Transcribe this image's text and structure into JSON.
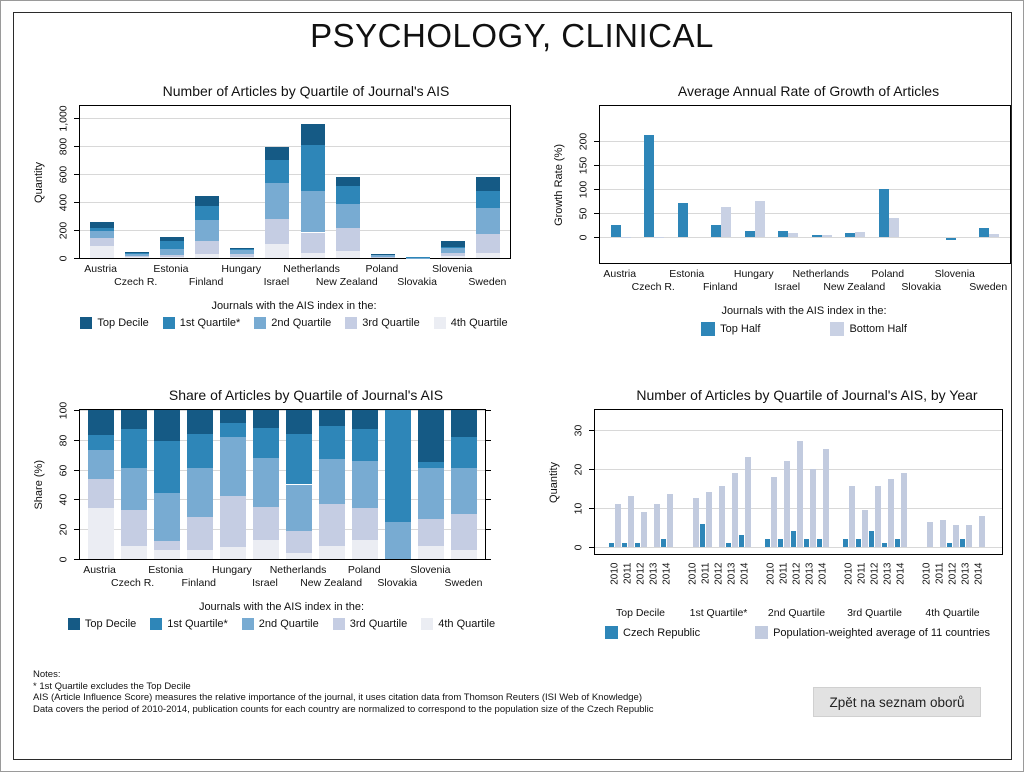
{
  "page_title": "PSYCHOLOGY, CLINICAL",
  "back_button": {
    "label": "Zpět na seznam oborů"
  },
  "notes": {
    "lines": [
      "Notes:",
      "* 1st Quartile excludes the Top Decile",
      "AIS (Article Influence Score) measures the relative importance of the journal, it uses citation data from Thomson Reuters (ISI Web of Knowledge)",
      "Data covers the period of 2010-2014, publication counts for each country are normalized to correspond to the population size of the Czech Republic"
    ]
  },
  "colors": {
    "top_decile": "#155a85",
    "q1": "#2e86b8",
    "q2": "#78abd2",
    "q3": "#c5cde3",
    "q4": "#ebedf3",
    "top_half": "#2e86b8",
    "bottom_half": "#c9d1e4",
    "czech": "#2e86b8",
    "avg": "#c2cbdf",
    "grid": "#d8d8d8"
  },
  "chart_data": [
    {
      "type": "bar",
      "stacked": true,
      "title": "Number of Articles by Quartile of Journal's AIS",
      "ylabel": "Quantity",
      "ytick_values": [
        0,
        200,
        400,
        600,
        800,
        1000
      ],
      "ytick_labels": [
        "0",
        "200",
        "400",
        "600",
        "800",
        "1,000"
      ],
      "ylim": [
        0,
        1085
      ],
      "categories": [
        "Austria",
        "Czech R.",
        "Estonia",
        "Finland",
        "Hungary",
        "Israel",
        "Netherlands",
        "New Zealand",
        "Poland",
        "Slovakia",
        "Slovenia",
        "Sweden"
      ],
      "series": [
        {
          "name": "4th Quartile",
          "color_key": "q4",
          "values": [
            88,
            4,
            9,
            26,
            6,
            103,
            38,
            52,
            4,
            0,
            11,
            35
          ]
        },
        {
          "name": "3rd Quartile",
          "color_key": "q3",
          "values": [
            52,
            10,
            9,
            97,
            24,
            174,
            144,
            162,
            6,
            0,
            22,
            139
          ]
        },
        {
          "name": "2nd Quartile",
          "color_key": "q2",
          "values": [
            50,
            11,
            48,
            145,
            28,
            261,
            298,
            174,
            10,
            2,
            41,
            180
          ]
        },
        {
          "name": "1st Quartile*",
          "color_key": "q1",
          "values": [
            26,
            10,
            53,
            101,
            6,
            158,
            326,
            128,
            6,
            6,
            5,
            122
          ]
        },
        {
          "name": "Top Decile",
          "color_key": "top_decile",
          "values": [
            44,
            5,
            31,
            71,
            6,
            94,
            154,
            64,
            4,
            0,
            41,
            104
          ]
        }
      ],
      "legend_caption": "Journals with the AIS index in the:",
      "legend": [
        {
          "label": "Top Decile",
          "color_key": "top_decile"
        },
        {
          "label": "1st Quartile*",
          "color_key": "q1"
        },
        {
          "label": "2nd Quartile",
          "color_key": "q2"
        },
        {
          "label": "3rd Quartile",
          "color_key": "q3"
        },
        {
          "label": "4th Quartile",
          "color_key": "q4"
        }
      ]
    },
    {
      "type": "bar",
      "grouped": true,
      "title": "Average Annual Rate of Growth of Articles",
      "ylabel": "Growth Rate (%)",
      "ytick_values": [
        0,
        50,
        100,
        150,
        200
      ],
      "ytick_labels": [
        "0",
        "50",
        "100",
        "150",
        "200"
      ],
      "ylim": [
        -55,
        273
      ],
      "categories": [
        "Austria",
        "Czech R.",
        "Estonia",
        "Finland",
        "Hungary",
        "Israel",
        "Netherlands",
        "New Zealand",
        "Poland",
        "Slovakia",
        "Slovenia",
        "Sweden"
      ],
      "series": [
        {
          "name": "Top Half",
          "color_key": "top_half",
          "values": [
            25,
            213,
            70,
            25,
            13,
            13,
            4,
            9,
            101,
            0,
            -5,
            18
          ]
        },
        {
          "name": "Bottom Half",
          "color_key": "bottom_half",
          "values": [
            1,
            1,
            0,
            62,
            75,
            8,
            5,
            11,
            39,
            0,
            0,
            6
          ]
        }
      ],
      "legend_caption": "Journals with the AIS index in the:",
      "legend": [
        {
          "label": "Top Half",
          "color_key": "top_half"
        },
        {
          "label": "Bottom Half",
          "color_key": "bottom_half"
        }
      ]
    },
    {
      "type": "bar",
      "stacked": true,
      "title": "Share of Articles by Quartile of Journal's AIS",
      "ylabel": "Share (%)",
      "ytick_values": [
        0,
        20,
        40,
        60,
        80,
        100
      ],
      "ytick_labels": [
        "0",
        "20",
        "40",
        "60",
        "80",
        "100"
      ],
      "ylim": [
        0,
        100
      ],
      "categories": [
        "Austria",
        "Czech R.",
        "Estonia",
        "Finland",
        "Hungary",
        "Israel",
        "Netherlands",
        "New Zealand",
        "Poland",
        "Slovakia",
        "Slovenia",
        "Sweden"
      ],
      "series": [
        {
          "name": "4th Quartile",
          "color_key": "q4",
          "values": [
            34,
            9,
            6,
            6,
            8,
            13,
            4,
            9,
            13,
            0,
            9,
            6
          ]
        },
        {
          "name": "3rd Quartile",
          "color_key": "q3",
          "values": [
            20,
            24,
            6,
            22,
            34,
            22,
            15,
            28,
            21,
            0,
            18,
            24
          ]
        },
        {
          "name": "2nd Quartile",
          "color_key": "q2",
          "values": [
            19,
            28,
            32,
            33,
            40,
            33,
            31,
            30,
            32,
            25,
            34,
            31
          ]
        },
        {
          "name": "1st Quartile*",
          "color_key": "q1",
          "values": [
            10,
            26,
            35,
            23,
            9,
            20,
            34,
            22,
            21,
            75,
            4,
            21
          ]
        },
        {
          "name": "Top Decile",
          "color_key": "top_decile",
          "values": [
            17,
            13,
            21,
            16,
            9,
            12,
            16,
            11,
            13,
            0,
            35,
            18
          ]
        }
      ],
      "legend_caption": "Journals with the AIS index in the:",
      "legend": [
        {
          "label": "Top Decile",
          "color_key": "top_decile"
        },
        {
          "label": "1st Quartile*",
          "color_key": "q1"
        },
        {
          "label": "2nd Quartile",
          "color_key": "q2"
        },
        {
          "label": "3rd Quartile",
          "color_key": "q3"
        },
        {
          "label": "4th Quartile",
          "color_key": "q4"
        }
      ]
    },
    {
      "type": "bar",
      "by_year": true,
      "title": "Number of Articles by Quartile of Journal's AIS, by Year",
      "ylabel": "Quantity",
      "ytick_values": [
        0,
        10,
        20,
        30
      ],
      "ytick_labels": [
        "0",
        "10",
        "20",
        "30"
      ],
      "ylim": [
        -2,
        35
      ],
      "groups": [
        "Top Decile",
        "1st Quartile*",
        "2nd Quartile",
        "3rd Quartile",
        "4th Quartile"
      ],
      "years": [
        "2010",
        "2011",
        "2012",
        "2013",
        "2014"
      ],
      "series": [
        {
          "name": "Czech Republic",
          "color_key": "czech",
          "values": [
            [
              1,
              1,
              1,
              0,
              2
            ],
            [
              0,
              6,
              0,
              1,
              3
            ],
            [
              2,
              2,
              4,
              2,
              2
            ],
            [
              2,
              2,
              4,
              1,
              2
            ],
            [
              0,
              0,
              1,
              2,
              0
            ]
          ]
        },
        {
          "name": "Population-weighted average of 11 countries",
          "color_key": "avg",
          "values": [
            [
              11,
              13,
              9,
              11,
              13.5
            ],
            [
              12.5,
              14,
              15.5,
              19,
              23
            ],
            [
              18,
              22,
              27,
              20,
              25
            ],
            [
              15.5,
              9.5,
              15.5,
              17.5,
              19
            ],
            [
              6.5,
              7,
              5.5,
              5.5,
              8
            ]
          ]
        }
      ],
      "legend": [
        {
          "label": "Czech Republic",
          "color_key": "czech"
        },
        {
          "label": "Population-weighted average of 11 countries",
          "color_key": "avg"
        }
      ]
    }
  ]
}
